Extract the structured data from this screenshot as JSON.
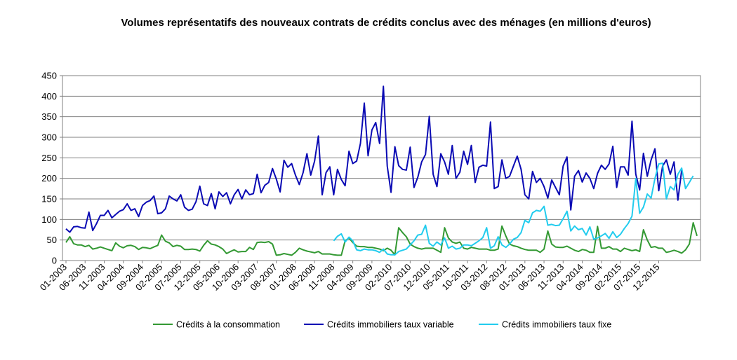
{
  "chart_data": {
    "type": "line",
    "title": "Volumes représentatifs des nouveaux contrats de crédits conclus avec des ménages (en millions d'euros)",
    "ylim": [
      0,
      450
    ],
    "y_ticks": [
      "0",
      "50",
      "100",
      "150",
      "200",
      "250",
      "300",
      "350",
      "400",
      "450"
    ],
    "x_start": "01-2003",
    "x_end": "02-2016",
    "x_ticks": [
      "01-2003",
      "06-2003",
      "11-2003",
      "04-2004",
      "09-2004",
      "02-2005",
      "07-2005",
      "12-2005",
      "05-2006",
      "10-2006",
      "03-2007",
      "08-2007",
      "01-2008",
      "06-2008",
      "11-2008",
      "04-2009",
      "09-2009",
      "02-2010",
      "07-2010",
      "12-2010",
      "05-2011",
      "10-2011",
      "03-2012",
      "08-2012",
      "01-2013",
      "06-2013",
      "11-2013",
      "04-2014",
      "09-2014",
      "02-2015",
      "07-2015",
      "12-2015"
    ],
    "grid": "horizontal",
    "legend_position": "bottom",
    "series": [
      {
        "name": "Crédits à la consommation",
        "color": "#339933",
        "values": [
          44,
          58,
          41,
          38,
          38,
          34,
          37,
          28,
          30,
          33,
          30,
          27,
          24,
          43,
          35,
          31,
          36,
          37,
          34,
          27,
          32,
          31,
          29,
          33,
          37,
          62,
          47,
          43,
          34,
          37,
          35,
          27,
          27,
          28,
          27,
          23,
          37,
          48,
          40,
          38,
          34,
          28,
          17,
          22,
          26,
          21,
          22,
          22,
          32,
          27,
          44,
          45,
          44,
          46,
          40,
          13,
          14,
          17,
          15,
          13,
          20,
          30,
          26,
          23,
          21,
          19,
          22,
          16,
          16,
          16,
          14,
          13,
          13,
          48,
          55,
          44,
          35,
          34,
          34,
          32,
          32,
          30,
          28,
          24,
          30,
          25,
          14,
          80,
          68,
          58,
          40,
          34,
          30,
          28,
          30,
          30,
          30,
          25,
          20,
          80,
          55,
          45,
          42,
          45,
          30,
          28,
          32,
          30,
          28,
          28,
          28,
          25,
          25,
          28,
          84,
          60,
          40,
          36,
          34,
          30,
          27,
          25,
          25,
          25,
          20,
          28,
          72,
          40,
          33,
          32,
          32,
          35,
          30,
          25,
          22,
          27,
          25,
          20,
          20,
          83,
          30,
          30,
          34,
          28,
          28,
          22,
          30,
          27,
          24,
          26,
          22,
          75,
          50,
          32,
          34,
          30,
          30,
          20,
          22,
          25,
          22,
          18,
          26,
          40,
          92,
          60
        ]
      },
      {
        "name": "Crédits immobiliers taux variable",
        "color": "#0a0ab4",
        "values": [
          77,
          69,
          82,
          83,
          80,
          79,
          118,
          73,
          90,
          110,
          110,
          122,
          104,
          112,
          120,
          124,
          138,
          122,
          126,
          107,
          134,
          142,
          146,
          157,
          114,
          116,
          126,
          157,
          150,
          145,
          160,
          130,
          122,
          125,
          143,
          181,
          138,
          134,
          163,
          126,
          167,
          156,
          165,
          138,
          160,
          173,
          150,
          172,
          160,
          163,
          210,
          165,
          183,
          190,
          224,
          198,
          167,
          244,
          227,
          236,
          208,
          185,
          214,
          260,
          208,
          242,
          303,
          160,
          214,
          228,
          160,
          222,
          197,
          182,
          266,
          236,
          242,
          285,
          383,
          255,
          318,
          336,
          285,
          424,
          230,
          166,
          277,
          231,
          222,
          220,
          276,
          178,
          203,
          240,
          258,
          351,
          210,
          180,
          260,
          240,
          210,
          280,
          200,
          215,
          266,
          234,
          280,
          190,
          227,
          232,
          230,
          337,
          175,
          180,
          245,
          200,
          205,
          230,
          254,
          222,
          160,
          150,
          217,
          190,
          200,
          180,
          152,
          196,
          178,
          160,
          230,
          252,
          123,
          205,
          219,
          191,
          213,
          200,
          175,
          212,
          232,
          222,
          235,
          278,
          178,
          228,
          228,
          208,
          339,
          210,
          172,
          261,
          205,
          245,
          272,
          170,
          230,
          245,
          210,
          240,
          147,
          220
        ]
      },
      {
        "name": "Crédits immobiliers taux fixe",
        "color": "#22ccee",
        "start_index": 70,
        "values": [
          48,
          59,
          65,
          45,
          57,
          48,
          26,
          24,
          28,
          26,
          26,
          24,
          20,
          28,
          16,
          14,
          14,
          22,
          25,
          28,
          38,
          48,
          62,
          64,
          86,
          42,
          35,
          45,
          38,
          55,
          30,
          35,
          28,
          30,
          38,
          38,
          36,
          42,
          48,
          56,
          80,
          30,
          36,
          58,
          38,
          32,
          40,
          52,
          56,
          68,
          98,
          92,
          116,
          122,
          120,
          132,
          86,
          88,
          85,
          86,
          102,
          120,
          72,
          84,
          75,
          78,
          62,
          82,
          52,
          55,
          60,
          66,
          54,
          70,
          56,
          64,
          78,
          90,
          108,
          200,
          115,
          130,
          162,
          152,
          200,
          235,
          237,
          150,
          180,
          172,
          210,
          225,
          175,
          190,
          206
        ]
      }
    ]
  }
}
